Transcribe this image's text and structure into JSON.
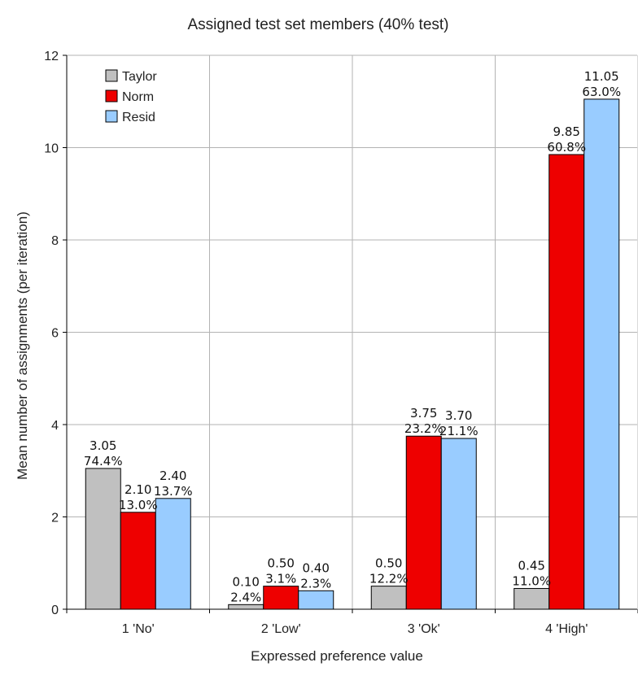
{
  "chart_data": {
    "type": "bar",
    "title": "Assigned test set members (40% test)",
    "xlabel": "Expressed preference value",
    "ylabel": "Mean number of assignments (per iteration)",
    "ylim": [
      0,
      12
    ],
    "yticks": [
      0,
      2,
      4,
      6,
      8,
      10,
      12
    ],
    "grid": true,
    "legend_position": "top-left",
    "categories": [
      "1 'No'",
      "2 'Low'",
      "3 'Ok'",
      "4 'High'"
    ],
    "series": [
      {
        "name": "Taylor",
        "color": "#c0c0c0",
        "values": [
          3.05,
          0.1,
          0.5,
          0.45
        ],
        "value_labels": [
          "3.05",
          "0.10",
          "0.50",
          "0.45"
        ],
        "percent_labels": [
          "74.4%",
          "2.4%",
          "12.2%",
          "11.0%"
        ]
      },
      {
        "name": "Norm",
        "color": "#ee0000",
        "values": [
          2.1,
          0.5,
          3.75,
          9.85
        ],
        "value_labels": [
          "2.10",
          "0.50",
          "3.75",
          "9.85"
        ],
        "percent_labels": [
          "13.0%",
          "3.1%",
          "23.2%",
          "60.8%"
        ]
      },
      {
        "name": "Resid",
        "color": "#99ccff",
        "values": [
          2.4,
          0.4,
          3.7,
          11.05
        ],
        "value_labels": [
          "2.40",
          "0.40",
          "3.70",
          "11.05"
        ],
        "percent_labels": [
          "13.7%",
          "2.3%",
          "21.1%",
          "63.0%"
        ]
      }
    ]
  }
}
